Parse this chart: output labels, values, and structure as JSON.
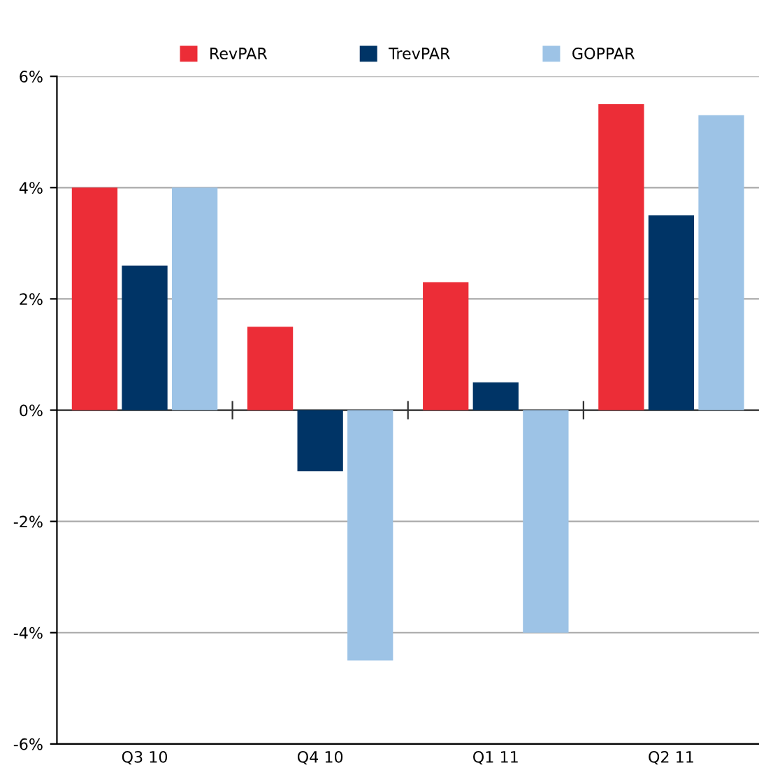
{
  "chart_data": {
    "type": "bar",
    "categories": [
      "Q3 10",
      "Q4 10",
      "Q1 11",
      "Q2 11"
    ],
    "series": [
      {
        "name": "RevPAR",
        "color": "#ec2d37",
        "values": [
          4.0,
          1.5,
          2.3,
          5.5
        ]
      },
      {
        "name": "TrevPAR",
        "color": "#003466",
        "values": [
          2.6,
          -1.1,
          0.5,
          3.5
        ]
      },
      {
        "name": "GOPPAR",
        "color": "#9dc3e6",
        "values": [
          4.0,
          -4.5,
          -4.0,
          5.3
        ]
      }
    ],
    "ylim": [
      -6,
      6
    ],
    "yticks": [
      {
        "value": -6,
        "label": "-6%"
      },
      {
        "value": -4,
        "label": "-4%"
      },
      {
        "value": -2,
        "label": "-2%"
      },
      {
        "value": 0,
        "label": "0%"
      },
      {
        "value": 2,
        "label": "2%"
      },
      {
        "value": 4,
        "label": "4%"
      },
      {
        "value": 6,
        "label": "6%"
      }
    ],
    "grid": "y",
    "legend": "top"
  }
}
